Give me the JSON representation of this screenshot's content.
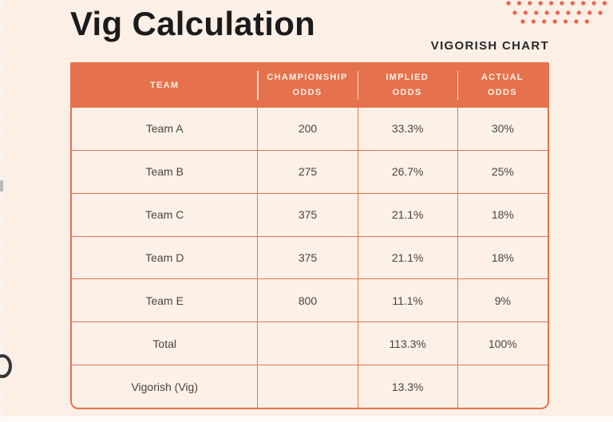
{
  "title": "Vig Calculation",
  "subtitle": "VIGORISH CHART",
  "colors": {
    "background": "#fcefe6",
    "accent_coral": "#e5724c",
    "table_border": "#e8714b",
    "dots": "#e8694a",
    "title_text": "#1b1b1d",
    "header_text": "#fdf2e9",
    "cell_text": "#464646"
  },
  "decor": {
    "dot_rows": 3,
    "left_edge_notches": true
  },
  "chart_data": {
    "type": "table",
    "title": "Vig Calculation",
    "subtitle": "VIGORISH CHART",
    "columns": [
      "TEAM",
      "CHAMPIONSHIP\nODDS",
      "IMPLIED\nODDS",
      "ACTUAL\nODDS"
    ],
    "rows": [
      [
        "Team A",
        "200",
        "33.3%",
        "30%"
      ],
      [
        "Team B",
        "275",
        "26.7%",
        "25%"
      ],
      [
        "Team C",
        "375",
        "21.1%",
        "18%"
      ],
      [
        "Team D",
        "375",
        "21.1%",
        "18%"
      ],
      [
        "Team E",
        "800",
        "11.1%",
        "9%"
      ],
      [
        "Total",
        "",
        "113.3%",
        "100%"
      ],
      [
        "Vigorish (Vig)",
        "",
        "13.3%",
        ""
      ]
    ],
    "legend_position": "none",
    "grid": true
  }
}
